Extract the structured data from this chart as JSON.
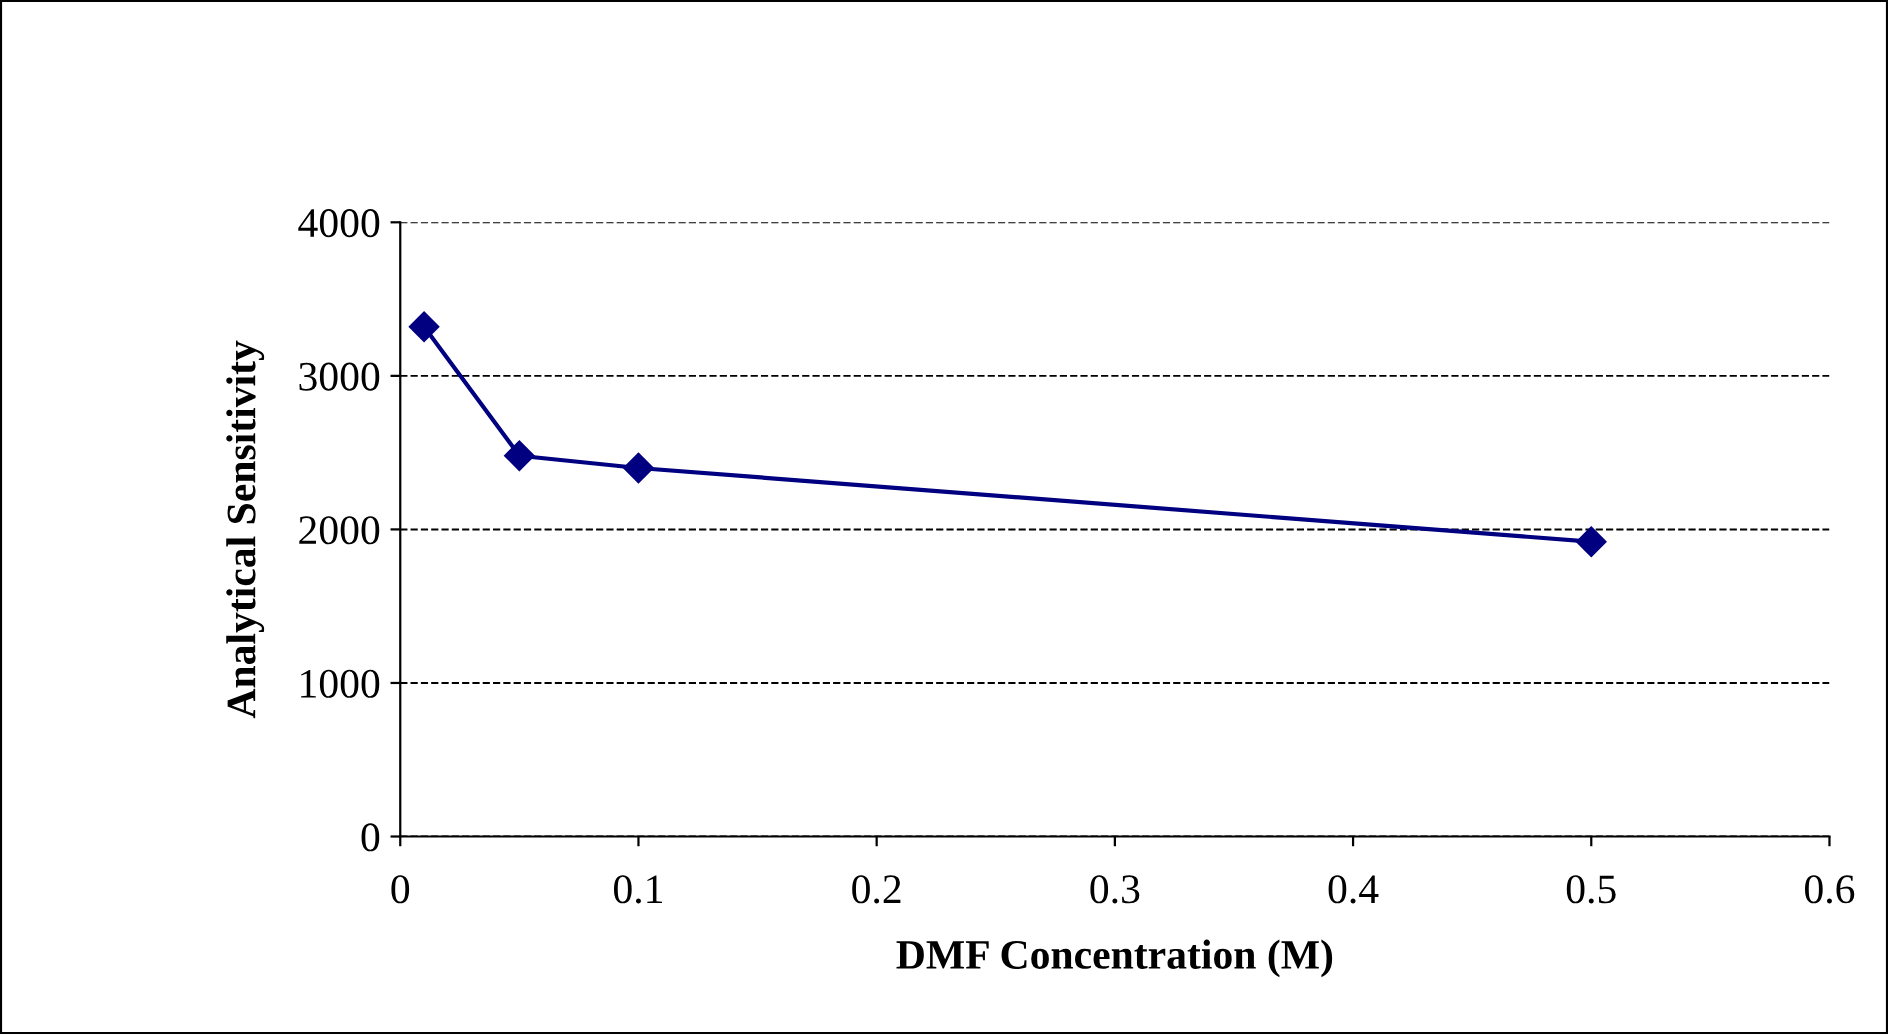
{
  "chart_data": {
    "type": "line",
    "xlabel": "DMF Concentration (M)",
    "ylabel": "Analytical Sensitivity",
    "x": [
      0.01,
      0.05,
      0.1,
      0.5
    ],
    "series": [
      {
        "color": "#000080",
        "values": [
          3320,
          2480,
          2400,
          1920
        ]
      }
    ],
    "xlim": [
      0,
      0.6
    ],
    "xticks": [
      {
        "value": 0,
        "label": "0"
      },
      0.1,
      0.2,
      0.3,
      0.4,
      0.5,
      0.6
    ],
    "ylim": [
      0,
      4000
    ],
    "yticks": [
      0,
      1000,
      2000,
      3000,
      4000
    ],
    "grid": "y",
    "marker": "diamond",
    "line_style": "solid",
    "legend": false
  }
}
